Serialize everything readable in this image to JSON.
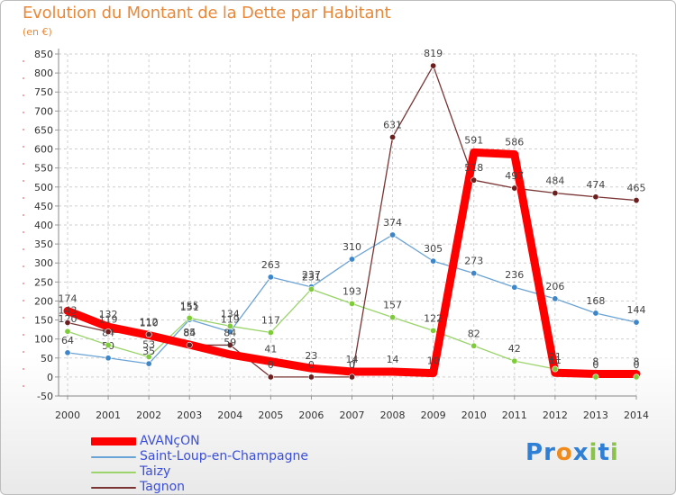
{
  "title": "Evolution du Montant de la Dette par Habitant",
  "subtitle": "(en €)",
  "brand": {
    "letters": [
      "P",
      "r",
      "o",
      "x",
      "i",
      "t",
      "i"
    ],
    "colors": [
      "#2f7fd6",
      "#2f7fd6",
      "#f08a1a",
      "#2f7fd6",
      "#8ac34a",
      "#2f7fd6",
      "#8ac34a"
    ]
  },
  "chart_data": {
    "type": "line",
    "title": "Evolution du Montant de la Dette par Habitant",
    "ylabel": "(en €)",
    "xlabel": "",
    "categories": [
      "2000",
      "2001",
      "2002",
      "2003",
      "2004",
      "2005",
      "2006",
      "2007",
      "2008",
      "2009",
      "2010",
      "2011",
      "2012",
      "2013",
      "2014"
    ],
    "ylim": [
      -50,
      850
    ],
    "yticks": [
      "-50",
      "0",
      "50",
      "100",
      "150",
      "200",
      "250",
      "300",
      "350",
      "400",
      "450",
      "500",
      "550",
      "600",
      "650",
      "700",
      "750",
      "800",
      "850"
    ],
    "grid": true,
    "series": [
      {
        "name": "AVANçON",
        "color": "#ff0000",
        "emphasis": true,
        "values": [
          174,
          132,
          110,
          85,
          59,
          41,
          23,
          14,
          14,
          10,
          591,
          586,
          11,
          8,
          8
        ],
        "labels": [
          "174",
          "132",
          "110",
          "85",
          "59",
          "41",
          "23",
          "14",
          "14",
          "10",
          "591",
          "586",
          "11",
          "8",
          "8"
        ]
      },
      {
        "name": "Saint-Loup-en-Champagne",
        "color": "#6aa3d5",
        "point_color": "#3f86c8",
        "values": [
          64,
          50,
          35,
          151,
          119,
          263,
          237,
          310,
          374,
          305,
          273,
          236,
          206,
          168,
          144
        ],
        "labels": [
          "64",
          "50",
          "35",
          "151",
          "119",
          "263",
          "237",
          "310",
          "374",
          "305",
          "273",
          "236",
          "206",
          "168",
          "144"
        ]
      },
      {
        "name": "Taizy",
        "color": "#9ad46a",
        "point_color": "#7fcc3a",
        "values": [
          120,
          84,
          53,
          155,
          134,
          117,
          231,
          193,
          157,
          122,
          82,
          42,
          21,
          0,
          0
        ],
        "labels": [
          "120",
          "84",
          "53",
          "155",
          "134",
          "117",
          "231",
          "193",
          "157",
          "122",
          "82",
          "42",
          "21",
          "0",
          "0"
        ]
      },
      {
        "name": "Tagnon",
        "color": "#7a3434",
        "point_color": "#6b1f1f",
        "values": [
          143,
          119,
          112,
          84,
          84,
          0,
          0,
          0,
          631,
          819,
          518,
          497,
          484,
          474,
          465
        ],
        "labels": [
          "143",
          "119",
          "112",
          "84",
          "84",
          "0",
          "0",
          "0",
          "631",
          "819",
          "518",
          "497",
          "484",
          "474",
          "465"
        ]
      }
    ]
  },
  "legend": [
    "AVANçON",
    "Saint-Loup-en-Champagne",
    "Taizy",
    "Tagnon"
  ]
}
